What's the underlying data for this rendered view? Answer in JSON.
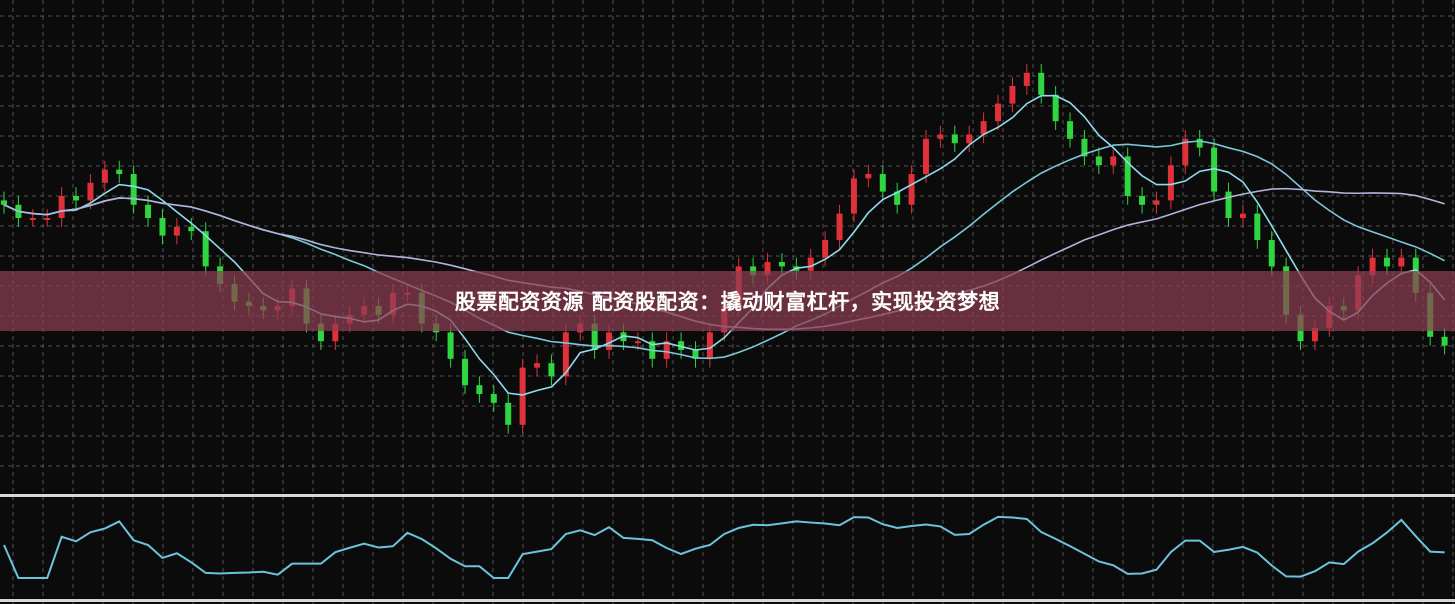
{
  "banner": {
    "title": "股票配资资源 配资股配资：撬动财富杠杆，实现投资梦想"
  },
  "colors": {
    "background": "#0b0b0b",
    "grid": "#8a8a8a",
    "up": "#e0303a",
    "down": "#2fd640",
    "ma_fast": "#8fdcec",
    "ma_mid": "#7cc8da",
    "ma_slow": "#b0b4dc",
    "indicator": "#6cc4dc",
    "banner": "#8c3e52"
  },
  "chart_data": {
    "type": "candlestick",
    "title": "",
    "xlabel": "",
    "ylabel": "",
    "grid": true,
    "ylim": [
      0,
      100
    ],
    "moving_averages": [
      5,
      20,
      40
    ],
    "indicator_panel": "oscillator line below price panel",
    "close": [
      58,
      55,
      55,
      55,
      60,
      59,
      63,
      66,
      65,
      58,
      55,
      51,
      53,
      52,
      44,
      40,
      36,
      35,
      34,
      35,
      39,
      31,
      27,
      31,
      33,
      35,
      33,
      38,
      38,
      31,
      29,
      23,
      17,
      15,
      13,
      8,
      21,
      22,
      19,
      29,
      31,
      25,
      29,
      27,
      27,
      23,
      27,
      25,
      23,
      29,
      35,
      44,
      42,
      45,
      44,
      43,
      46,
      50,
      56,
      64,
      65,
      61,
      58,
      65,
      73,
      74,
      72,
      74,
      77,
      81,
      85,
      88,
      83,
      77,
      73,
      69,
      67,
      69,
      60,
      58,
      59,
      67,
      73,
      71,
      61,
      55,
      56,
      50,
      44,
      33,
      27,
      30,
      35,
      34,
      42,
      46,
      44,
      46,
      38,
      28,
      26
    ]
  }
}
